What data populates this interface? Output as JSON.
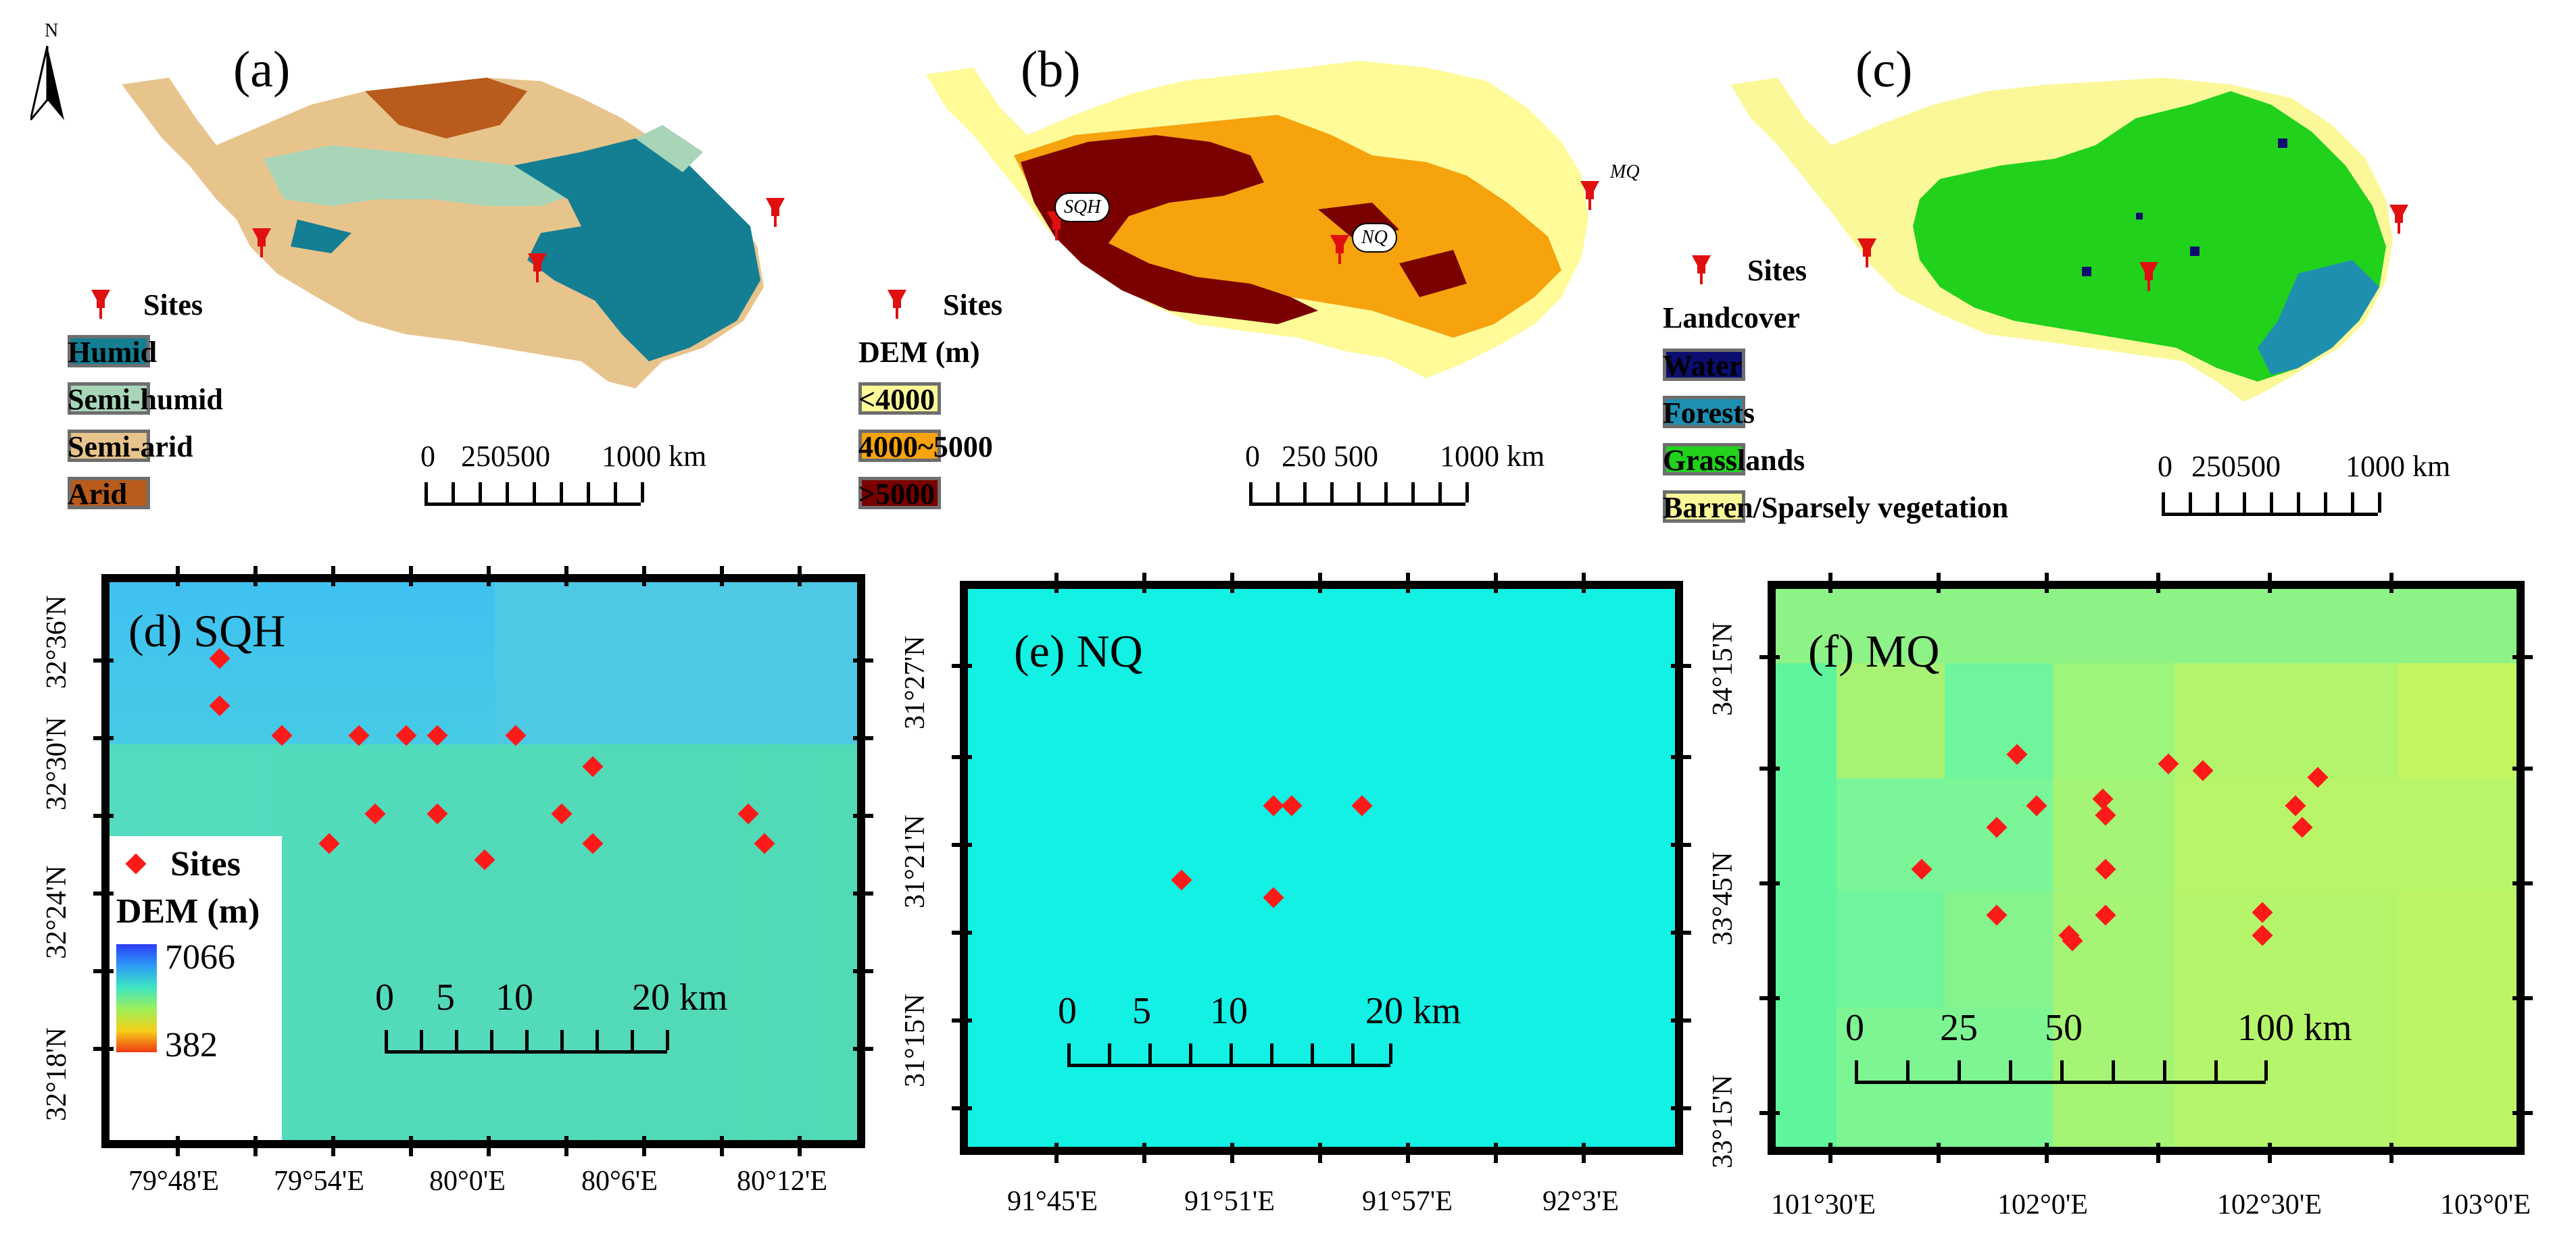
{
  "north_arrow": {
    "label": "N"
  },
  "panel_a": {
    "label": "(a)",
    "sites_label": "Sites",
    "legend": [
      {
        "label": "Humid",
        "color": "#147e93"
      },
      {
        "label": "Semi-humid",
        "color": "#a8d5b8"
      },
      {
        "label": "Semi-arid",
        "color": "#e8c48d"
      },
      {
        "label": "Arid",
        "color": "#b85b1c"
      }
    ],
    "scale": {
      "labels": [
        "0",
        "250500",
        "1000 km"
      ]
    }
  },
  "panel_b": {
    "label": "(b)",
    "sites_label": "Sites",
    "legend_title": "DEM (m)",
    "legend": [
      {
        "label": "<4000",
        "color": "#fefb98"
      },
      {
        "label": "4000~5000",
        "color": "#f6a30e"
      },
      {
        "label": ">5000",
        "color": "#7a0000"
      }
    ],
    "site_tags": [
      "SQH",
      "NQ",
      "MQ"
    ],
    "scale": {
      "labels": [
        "0",
        "250 500",
        "1000 km"
      ]
    }
  },
  "panel_c": {
    "label": "(c)",
    "sites_label": "Sites",
    "legend_title": "Landcover",
    "legend": [
      {
        "label": "Water",
        "color": "#0b0e6e"
      },
      {
        "label": "Forests",
        "color": "#1f8fb0"
      },
      {
        "label": "Grasslands",
        "color": "#21d11c"
      },
      {
        "label": "Barren/Sparsely vegetation",
        "color": "#fbf89a"
      }
    ],
    "scale": {
      "labels": [
        "0",
        "250500",
        "1000 km"
      ]
    }
  },
  "panel_d": {
    "title": "(d) SQH",
    "lat_labels": [
      "32°36'N",
      "32°30'N",
      "32°24'N",
      "32°18'N"
    ],
    "lon_labels": [
      "79°48'E",
      "79°54'E",
      "80°0'E",
      "80°6'E",
      "80°12'E"
    ],
    "legend_sites": "Sites",
    "legend_dem": "DEM (m)",
    "dem_max": "7066",
    "dem_min": "382",
    "scale": {
      "labels": [
        "0",
        "5",
        "10",
        "20 km"
      ]
    }
  },
  "panel_e": {
    "title": "(e) NQ",
    "lat_labels": [
      "31°27'N",
      "31°21'N",
      "31°15'N"
    ],
    "lon_labels": [
      "91°45'E",
      "91°51'E",
      "91°57'E",
      "92°3'E"
    ],
    "scale": {
      "labels": [
        "0",
        "5",
        "10",
        "20 km"
      ]
    }
  },
  "panel_f": {
    "title": "(f) MQ",
    "lat_labels": [
      "34°15'N",
      "33°45'N",
      "33°15'N"
    ],
    "lon_labels": [
      "101°30'E",
      "102°0'E",
      "102°30'E",
      "103°0'E"
    ],
    "scale": {
      "labels": [
        "0",
        "25",
        "50",
        "100 km"
      ]
    }
  }
}
